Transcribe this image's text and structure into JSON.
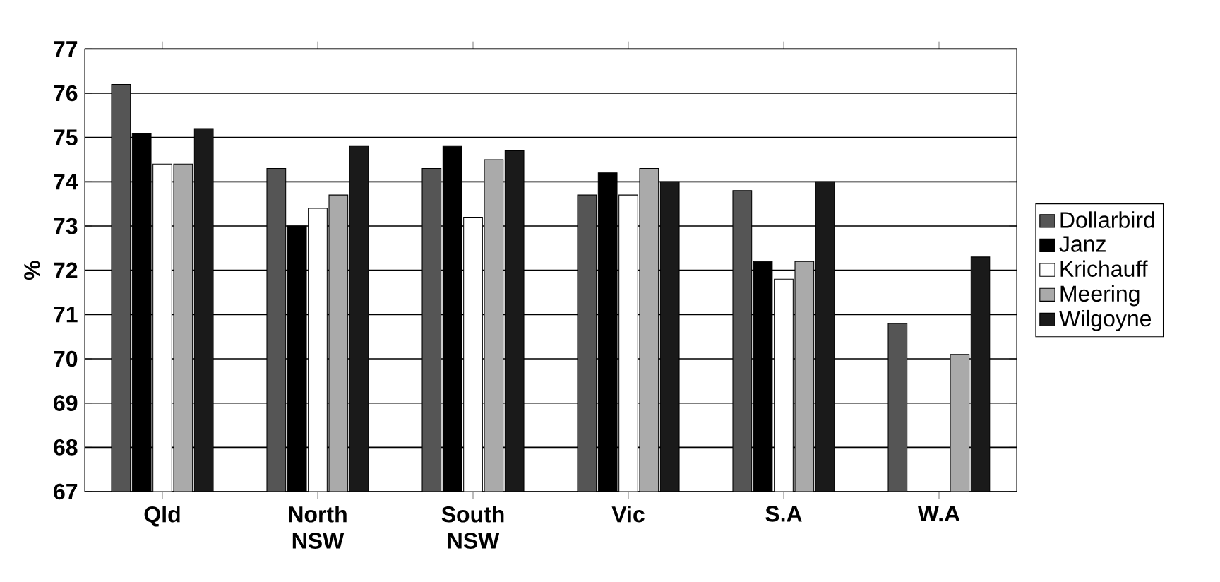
{
  "chart_data": {
    "type": "bar",
    "ylabel": "%",
    "categories": [
      "Qld",
      "North NSW",
      "South NSW",
      "Vic",
      "S.A",
      "W.A"
    ],
    "series": [
      {
        "name": "Dollarbird",
        "color": "#555555",
        "values": [
          76.2,
          74.3,
          74.3,
          73.7,
          73.8,
          70.8
        ]
      },
      {
        "name": "Janz",
        "color": "#000000",
        "values": [
          75.1,
          73.0,
          74.8,
          74.2,
          72.2,
          null
        ]
      },
      {
        "name": "Krichauff",
        "color": "#ffffff",
        "values": [
          74.4,
          73.4,
          73.2,
          73.7,
          71.8,
          null
        ]
      },
      {
        "name": "Meering",
        "color": "#aaaaaa",
        "values": [
          74.4,
          73.7,
          74.5,
          74.3,
          72.2,
          70.1
        ]
      },
      {
        "name": "Wilgoyne",
        "color": "#1a1a1a",
        "values": [
          75.2,
          74.8,
          74.7,
          74.0,
          74.0,
          72.3
        ]
      }
    ],
    "ylim": [
      67,
      77
    ],
    "yticks": [
      67,
      68,
      69,
      70,
      71,
      72,
      73,
      74,
      75,
      76,
      77
    ],
    "grid": "y",
    "legend": "right"
  }
}
